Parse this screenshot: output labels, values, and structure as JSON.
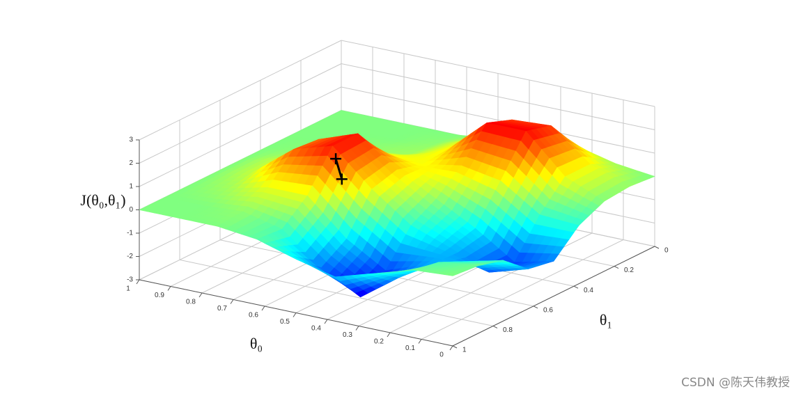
{
  "chart_data": {
    "type": "surface",
    "xlabel": "θ₀",
    "ylabel": "θ₁",
    "zlabel": "J(θ₀,θ₁)",
    "x": [
      0,
      0.125,
      0.25,
      0.375,
      0.5,
      0.625,
      0.75,
      0.875,
      1
    ],
    "y": [
      0,
      0.125,
      0.25,
      0.375,
      0.5,
      0.625,
      0.75,
      0.875,
      1
    ],
    "z": [
      [
        0.0,
        0.1,
        0.0,
        -0.5,
        -1.5,
        -1.3,
        -0.4,
        -0.1,
        0.0
      ],
      [
        0.2,
        0.7,
        0.7,
        -0.4,
        -1.9,
        -1.8,
        -0.8,
        -0.3,
        -0.1
      ],
      [
        0.6,
        2.0,
        2.3,
        0.7,
        -0.8,
        -1.1,
        -1.3,
        -1.3,
        -0.6
      ],
      [
        0.6,
        1.9,
        2.3,
        1.0,
        0.1,
        -0.5,
        -1.9,
        -2.5,
        -1.1
      ],
      [
        0.2,
        0.7,
        0.8,
        0.7,
        1.0,
        0.7,
        -0.9,
        -1.6,
        -0.7
      ],
      [
        0.0,
        0.1,
        0.2,
        0.8,
        2.2,
        2.2,
        0.6,
        -0.3,
        -0.2
      ],
      [
        0.0,
        0.0,
        0.1,
        0.5,
        1.6,
        1.7,
        0.6,
        0.1,
        0.0
      ],
      [
        0.0,
        0.0,
        0.0,
        0.1,
        0.4,
        0.4,
        0.2,
        0.0,
        0.0
      ],
      [
        0.0,
        0.0,
        0.0,
        0.0,
        0.0,
        0.0,
        0.0,
        0.0,
        0.0
      ]
    ],
    "xlim": [
      0,
      1
    ],
    "ylim": [
      0,
      1
    ],
    "zlim": [
      -3,
      3
    ],
    "xticks": [
      0,
      0.1,
      0.2,
      0.3,
      0.4,
      0.5,
      0.6,
      0.7,
      0.8,
      0.9,
      1
    ],
    "yticks": [
      0,
      0.2,
      0.4,
      0.6,
      0.8,
      1
    ],
    "zticks": [
      -3,
      -2,
      -1,
      0,
      1,
      2,
      3
    ],
    "colormap": "jet",
    "grid": true,
    "markers": {
      "x": [
        0.56,
        0.56
      ],
      "y": [
        0.71,
        0.68
      ],
      "z": [
        2.2,
        1.2
      ],
      "color": "#000000"
    }
  },
  "watermark": "CSDN @陈天伟教授"
}
